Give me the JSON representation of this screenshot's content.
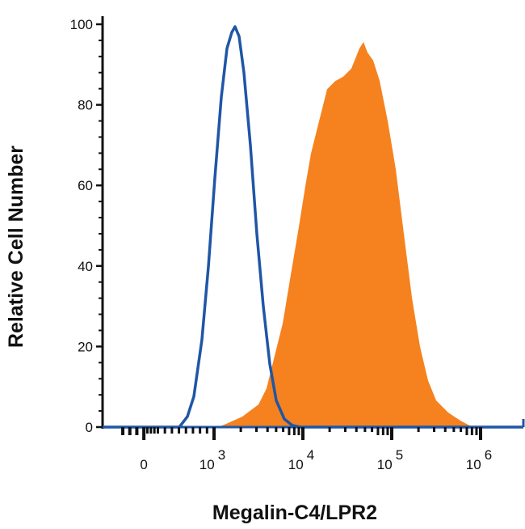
{
  "chart_data": {
    "type": "area",
    "title": "",
    "xlabel": "Megalin-C4/LPR2",
    "ylabel": "Relative Cell Number",
    "x_scale": "biexponential (linear near 0, log above 10^3)",
    "ylim": [
      0,
      100
    ],
    "y_ticks": [
      "0",
      "20",
      "40",
      "60",
      "80",
      "100"
    ],
    "x_ticks": [
      {
        "base": "0",
        "exp": "",
        "value": 0
      },
      {
        "base": "10",
        "exp": "3",
        "value": 1000
      },
      {
        "base": "10",
        "exp": "4",
        "value": 10000
      },
      {
        "base": "10",
        "exp": "5",
        "value": 100000
      },
      {
        "base": "10",
        "exp": "6",
        "value": 1000000
      }
    ],
    "grid": false,
    "series": [
      {
        "style": "filled",
        "color": "#f5821f",
        "x": [
          1110,
          1369,
          2080,
          3162,
          3899,
          4806,
          5929,
          7311,
          9016,
          10650,
          12330,
          15200,
          18740,
          23100,
          28500,
          35100,
          43300,
          48100,
          53400,
          61800,
          73100,
          90100,
          111000,
          137000,
          169000,
          208000,
          256000,
          316000,
          433000,
          593000,
          811000
        ],
        "y": [
          0,
          0.8,
          2.6,
          5.6,
          9.6,
          17.7,
          25.7,
          37.8,
          49.8,
          59.8,
          67.9,
          75.9,
          83.9,
          85.9,
          87,
          89,
          94,
          95.6,
          93,
          91,
          86,
          76,
          64,
          48,
          32,
          20,
          11.6,
          6.6,
          3.6,
          1.6,
          0
        ]
      },
      {
        "style": "outline",
        "color": "#1f56a6",
        "x": [
          505,
          620,
          712,
          827,
          919,
          1021,
          1208,
          1397,
          1585,
          1722,
          1913,
          2168,
          2564,
          3034,
          3589,
          4236,
          5012,
          6180,
          7620,
          9397
        ],
        "y": [
          0,
          2.6,
          7.6,
          21.7,
          39.8,
          61.8,
          81.9,
          94,
          98,
          99.4,
          97,
          88,
          70,
          48,
          30,
          15.7,
          6.6,
          2,
          0.4,
          0
        ]
      }
    ]
  }
}
